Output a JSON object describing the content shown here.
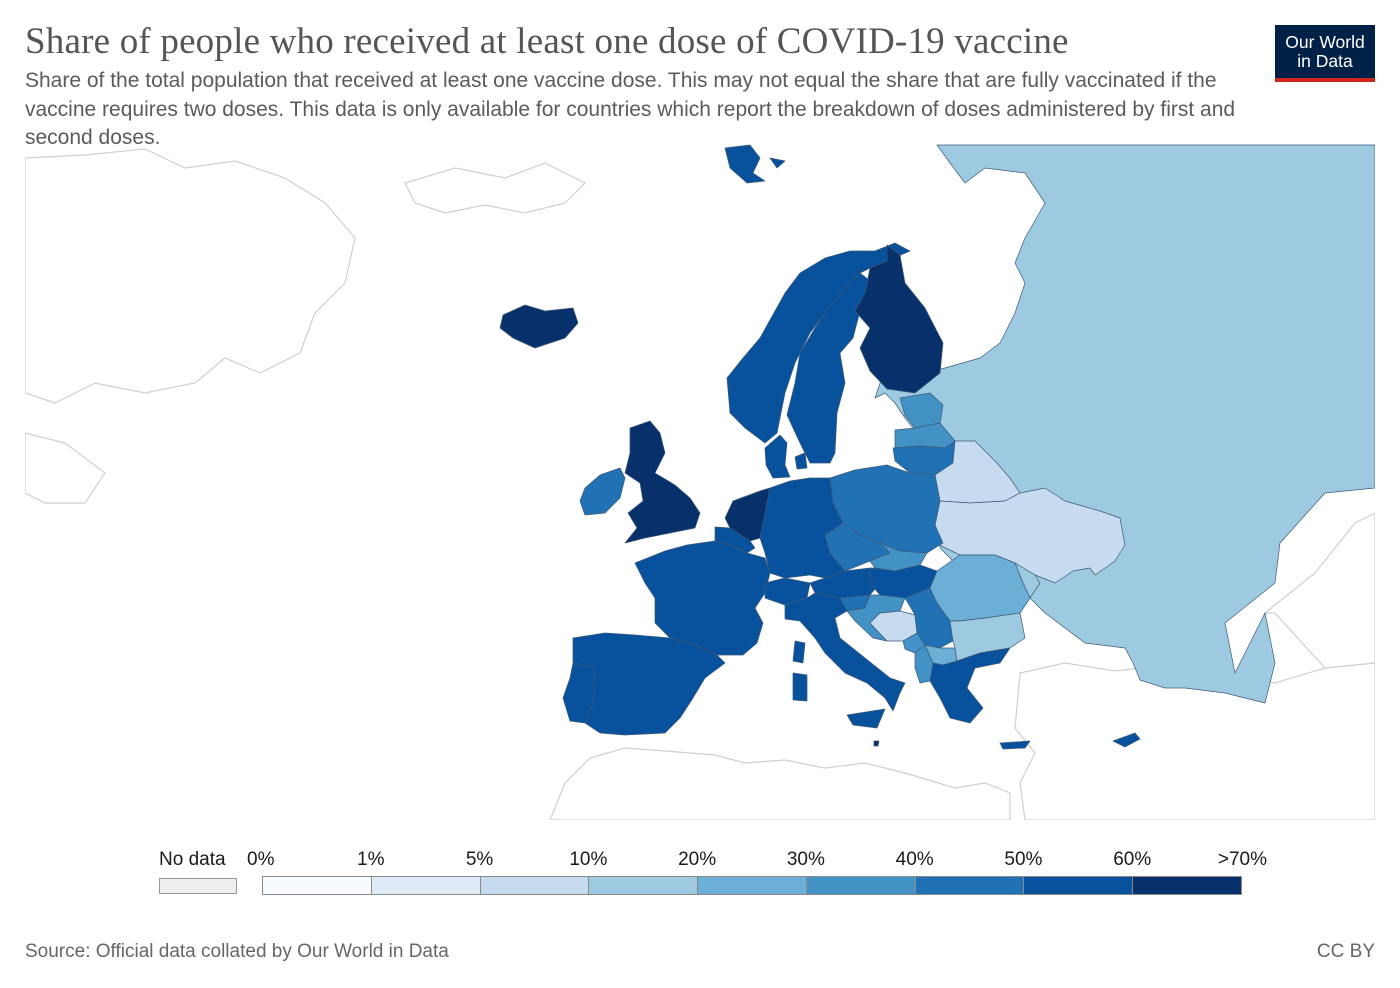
{
  "title": "Share of people who received at least one dose of COVID-19 vaccine",
  "subtitle": "Share of the total population that received at least one vaccine dose. This may not equal the share that are fully vaccinated if the vaccine requires two doses. This data is only available for countries which report the breakdown of doses administered by first and second doses.",
  "logo": {
    "line1": "Our World",
    "line2": "in Data",
    "bg_color": "#002147",
    "stripe_color": "#ce261e"
  },
  "legend": {
    "no_data_label": "No data",
    "no_data_color": "#eeeeee",
    "bins": [
      {
        "from": "0%",
        "to": "1%",
        "color": "#f7fbff"
      },
      {
        "from": "1%",
        "to": "5%",
        "color": "#deebf7"
      },
      {
        "from": "5%",
        "to": "10%",
        "color": "#c6dbef"
      },
      {
        "from": "10%",
        "to": "20%",
        "color": "#9ecae1"
      },
      {
        "from": "20%",
        "to": "30%",
        "color": "#6baed6"
      },
      {
        "from": "30%",
        "to": "40%",
        "color": "#4292c6"
      },
      {
        "from": "40%",
        "to": "50%",
        "color": "#2171b5"
      },
      {
        "from": "50%",
        "to": "60%",
        "color": "#08519c"
      },
      {
        "from": "60%",
        "to": ">70%",
        "color": "#08306b"
      }
    ],
    "tick_labels": [
      "0%",
      "1%",
      "5%",
      "10%",
      "20%",
      "30%",
      "40%",
      "50%",
      "60%",
      ">70%"
    ]
  },
  "countries": [
    {
      "name": "Iceland",
      "bin": 8
    },
    {
      "name": "Norway",
      "bin": 7
    },
    {
      "name": "Sweden",
      "bin": 7
    },
    {
      "name": "Finland",
      "bin": 8
    },
    {
      "name": "Russia",
      "bin": 3
    },
    {
      "name": "Estonia",
      "bin": 5
    },
    {
      "name": "Latvia",
      "bin": 5
    },
    {
      "name": "Lithuania",
      "bin": 6
    },
    {
      "name": "Belarus",
      "bin": 2
    },
    {
      "name": "Ukraine",
      "bin": 2
    },
    {
      "name": "Moldova",
      "bin": 3
    },
    {
      "name": "Poland",
      "bin": 6
    },
    {
      "name": "Germany",
      "bin": 7
    },
    {
      "name": "Denmark",
      "bin": 7
    },
    {
      "name": "Netherlands",
      "bin": 8
    },
    {
      "name": "Belgium",
      "bin": 7
    },
    {
      "name": "United Kingdom",
      "bin": 8
    },
    {
      "name": "Ireland",
      "bin": 6
    },
    {
      "name": "France",
      "bin": 7
    },
    {
      "name": "Spain",
      "bin": 7
    },
    {
      "name": "Portugal",
      "bin": 7
    },
    {
      "name": "Switzerland",
      "bin": 7
    },
    {
      "name": "Austria",
      "bin": 7
    },
    {
      "name": "Czechia",
      "bin": 6
    },
    {
      "name": "Slovakia",
      "bin": 5
    },
    {
      "name": "Hungary",
      "bin": 7
    },
    {
      "name": "Slovenia",
      "bin": 6
    },
    {
      "name": "Croatia",
      "bin": 5
    },
    {
      "name": "Bosnia and Herzegovina",
      "bin": 2
    },
    {
      "name": "Serbia",
      "bin": 6
    },
    {
      "name": "Montenegro",
      "bin": 5
    },
    {
      "name": "Albania",
      "bin": 5
    },
    {
      "name": "North Macedonia",
      "bin": 4
    },
    {
      "name": "Romania",
      "bin": 4
    },
    {
      "name": "Bulgaria",
      "bin": 3
    },
    {
      "name": "Greece",
      "bin": 7
    },
    {
      "name": "Italy",
      "bin": 7
    },
    {
      "name": "Cyprus",
      "bin": 7
    },
    {
      "name": "Malta",
      "bin": 8
    },
    {
      "name": "Svalbard",
      "bin": 7
    }
  ],
  "source": "Source: Official data collated by Our World in Data",
  "license": "CC BY"
}
